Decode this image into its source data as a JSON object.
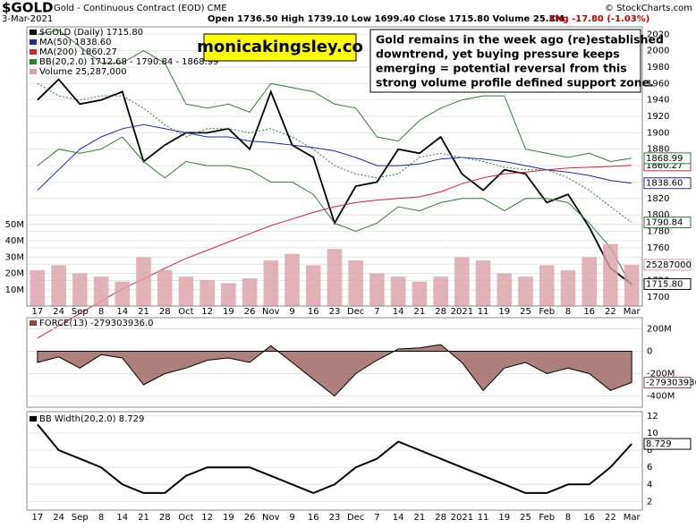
{
  "header": {
    "symbol": "$GOLD",
    "name": "Gold - Continuous Contract (EOD) CME",
    "date": "3-Mar-2021",
    "quote": "Open 1736.50  High 1739.10  Low 1699.40  Close 1715.80  Volume 25.3M",
    "change": "Chg -17.80 (-1.03%)",
    "credit": "© StockCharts.com",
    "watermark": "monicakingsley.co",
    "annotation": [
      "Gold remains in the week ago (re)established",
      "downtrend, yet buying pressure keeps",
      "emerging = potential reversal from this",
      "strong volume profile defined support zone."
    ]
  },
  "chart_data": [
    {
      "type": "line",
      "categories": [
        "17",
        "24",
        "Sep",
        "8",
        "14",
        "21",
        "28",
        "Oct",
        "12",
        "19",
        "26",
        "Nov",
        "9",
        "16",
        "23",
        "Dec",
        "7",
        "14",
        "21",
        "28",
        "2021",
        "11",
        "19",
        "25",
        "Feb",
        "8",
        "16",
        "22",
        "Mar"
      ],
      "ylim": [
        1689,
        2029
      ],
      "yticks": [
        1700,
        1720,
        1740,
        1760,
        1780,
        1800,
        1820,
        1840,
        1860,
        1880,
        1900,
        1920,
        1940,
        1960,
        1980,
        2000,
        2020
      ],
      "y2lim": [
        0,
        171000000
      ],
      "y2ticks": [
        {
          "value": 10000000,
          "label": "10M"
        },
        {
          "value": 20000000,
          "label": "20M"
        },
        {
          "value": 30000000,
          "label": "30M"
        },
        {
          "value": 40000000,
          "label": "40M"
        },
        {
          "value": 50000000,
          "label": "50M"
        }
      ],
      "series": [
        {
          "name": "$GOLD (Daily) 1715.80",
          "color": "#000000",
          "last_label": "1715.80",
          "values": [
            1940,
            1965,
            1935,
            1940,
            1950,
            1865,
            1885,
            1900,
            1900,
            1905,
            1880,
            1950,
            1885,
            1870,
            1790,
            1835,
            1840,
            1880,
            1875,
            1895,
            1850,
            1830,
            1855,
            1850,
            1815,
            1825,
            1785,
            1735,
            1715.8
          ]
        },
        {
          "name": "MA(50) 1838.60",
          "color": "#1f2aa0",
          "last_label": "1838.60",
          "values": [
            1830,
            1855,
            1880,
            1895,
            1905,
            1910,
            1905,
            1900,
            1895,
            1895,
            1890,
            1888,
            1885,
            1882,
            1878,
            1870,
            1860,
            1860,
            1862,
            1868,
            1870,
            1868,
            1865,
            1860,
            1855,
            1852,
            1848,
            1842,
            1838.6
          ]
        },
        {
          "name": "MA(200) 1860.27",
          "color": "#d0233c",
          "last_label": "1860.27",
          "values": [
            1650,
            1665,
            1680,
            1695,
            1710,
            1722,
            1735,
            1747,
            1757,
            1767,
            1777,
            1787,
            1795,
            1803,
            1810,
            1815,
            1818,
            1820,
            1822,
            1828,
            1838,
            1845,
            1850,
            1852,
            1855,
            1857,
            1858,
            1859,
            1860.27
          ]
        },
        {
          "name": "BB(20,2.0) 1712.68 - 1790.84 - 1868.99",
          "color": "#2e7d32",
          "last_label": "1790.84",
          "upper_label": "1868.99",
          "values": [
            1960,
            1945,
            1940,
            1945,
            1945,
            1930,
            1910,
            1895,
            1905,
            1905,
            1900,
            1905,
            1895,
            1880,
            1860,
            1850,
            1845,
            1850,
            1870,
            1875,
            1870,
            1865,
            1858,
            1855,
            1855,
            1845,
            1830,
            1810,
            1790.84
          ],
          "upper": [
            2020,
            2025,
            2005,
            1985,
            1985,
            2000,
            1985,
            1935,
            1930,
            1935,
            1925,
            1960,
            1955,
            1950,
            1935,
            1930,
            1895,
            1890,
            1915,
            1930,
            1940,
            1945,
            1945,
            1880,
            1875,
            1870,
            1875,
            1865,
            1868.99
          ],
          "lower": [
            1860,
            1880,
            1875,
            1880,
            1895,
            1865,
            1845,
            1865,
            1860,
            1860,
            1855,
            1840,
            1840,
            1825,
            1790,
            1780,
            1790,
            1810,
            1805,
            1815,
            1820,
            1820,
            1805,
            1820,
            1820,
            1815,
            1790,
            1760,
            1712.68
          ]
        },
        {
          "name": "Volume 25,287,000",
          "color": "#d9a0a6",
          "axis": "y2",
          "last_label": "25287000",
          "values": [
            22000000,
            25000000,
            20000000,
            18000000,
            15000000,
            30000000,
            22000000,
            18000000,
            16000000,
            14000000,
            17000000,
            28000000,
            32000000,
            25000000,
            35000000,
            28000000,
            20000000,
            18000000,
            15000000,
            18000000,
            30000000,
            28000000,
            20000000,
            18000000,
            25000000,
            22000000,
            30000000,
            38000000,
            25287000
          ]
        }
      ]
    },
    {
      "type": "area",
      "title": "FORCE(13) -279303936.0",
      "color": "#8a4a44",
      "ylim": [
        -500000000,
        300000000
      ],
      "yticks": [
        {
          "value": 200000000,
          "label": "200M"
        },
        0,
        {
          "value": -200000000,
          "label": "-200M"
        },
        {
          "value": -400000000,
          "label": "-400M"
        }
      ],
      "last_label": "-279303936",
      "values": [
        -100000000,
        -50000000,
        -150000000,
        -30000000,
        -60000000,
        -300000000,
        -200000000,
        -150000000,
        -80000000,
        -60000000,
        -100000000,
        50000000,
        -100000000,
        -250000000,
        -400000000,
        -200000000,
        -80000000,
        20000000,
        30000000,
        60000000,
        -100000000,
        -350000000,
        -150000000,
        -100000000,
        -200000000,
        -150000000,
        -200000000,
        -350000000,
        -279303936
      ]
    },
    {
      "type": "line",
      "title": "BB Width(20,2.0) 8.729",
      "color": "#000000",
      "ylim": [
        1,
        12.5
      ],
      "yticks": [
        2,
        4,
        6,
        8,
        10,
        12
      ],
      "last_label": "8.729",
      "values": [
        11,
        8,
        7,
        6,
        4,
        3,
        3,
        5,
        6,
        6,
        6,
        5,
        4,
        3,
        4,
        6,
        7,
        9,
        8,
        7,
        6,
        5,
        4,
        3,
        3,
        4,
        4,
        6,
        8.729
      ]
    }
  ]
}
